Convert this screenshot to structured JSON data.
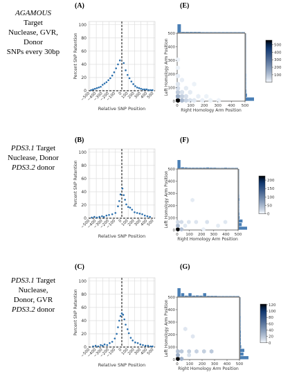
{
  "rows": [
    {
      "letter_left": "(A)",
      "letter_right": "(E)",
      "label_lines": [
        {
          "text": "AGAMOUS",
          "italic": true
        },
        {
          "text": "Target",
          "italic": false
        },
        {
          "text": "Nuclease, GVR,",
          "italic": false
        },
        {
          "text": "Donor",
          "italic": false
        },
        {
          "text": "SNPs every 30bp",
          "italic": false
        }
      ]
    },
    {
      "letter_left": "(B)",
      "letter_right": "(F)",
      "label_lines": [
        {
          "segments": [
            {
              "text": "PDS3.1",
              "italic": true
            },
            {
              "text": " Target",
              "italic": false
            }
          ]
        },
        {
          "text": "Nuclease, Donor",
          "italic": false
        },
        {
          "segments": [
            {
              "text": "PDS3.2",
              "italic": true
            },
            {
              "text": " donor",
              "italic": false
            }
          ]
        }
      ]
    },
    {
      "letter_left": "(C)",
      "letter_right": "(G)",
      "label_lines": [
        {
          "segments": [
            {
              "text": "PDS3.1",
              "italic": true
            },
            {
              "text": " Target",
              "italic": false
            }
          ]
        },
        {
          "text": "Nuclease,",
          "italic": false
        },
        {
          "text": "Donor, GVR",
          "italic": false
        },
        {
          "segments": [
            {
              "text": "PDS3.2",
              "italic": true
            },
            {
              "text": " donor",
              "italic": false
            }
          ]
        }
      ]
    }
  ],
  "colors": {
    "point": "#2a6fad",
    "grid": "#d9d9d9",
    "hist": "#4a7fb5",
    "cmap_low": "#f7fbff",
    "cmap_high": "#08306b",
    "cmap_top": "#000000"
  },
  "chart_data": [
    {
      "type": "scatter",
      "panel": "(A)",
      "xlabel": "Relative SNP Position",
      "ylabel": "Percent SNP Retention",
      "xlim": [
        -520,
        520
      ],
      "ylim": [
        0,
        105
      ],
      "xticks": [
        -500,
        -400,
        -300,
        -200,
        -100,
        0,
        100,
        200,
        300,
        400,
        500
      ],
      "xtick_labels": [
        "−500",
        "−400",
        "−300",
        "−200",
        "−100",
        "0",
        "100",
        "200",
        "300",
        "400",
        "500"
      ],
      "yticks": [
        0,
        20,
        40,
        60,
        80,
        100
      ],
      "grid": true,
      "reference_lines": {
        "vertical_x": 0,
        "horizontal_y": 0
      },
      "x": [
        -480,
        -450,
        -420,
        -390,
        -360,
        -330,
        -300,
        -270,
        -240,
        -210,
        -180,
        -150,
        -120,
        -90,
        -60,
        -30,
        30,
        60,
        90,
        120,
        150,
        180,
        210,
        240,
        270,
        300,
        330,
        360,
        390,
        420,
        450,
        480
      ],
      "y": [
        1,
        2,
        3,
        4,
        5,
        6,
        9,
        11,
        13,
        16,
        19,
        23,
        28,
        34,
        40,
        46,
        42,
        31,
        24,
        19,
        14,
        10,
        7,
        5,
        4,
        3,
        2,
        2,
        2,
        1,
        1,
        1
      ]
    },
    {
      "type": "scatter",
      "panel": "(B)",
      "xlabel": "Relative SNP Position",
      "ylabel": "Percent SNP Retention",
      "xlim": [
        -520,
        520
      ],
      "ylim": [
        0,
        105
      ],
      "xticks": [
        -500,
        -400,
        -300,
        -200,
        -100,
        0,
        100,
        200,
        300,
        400,
        500
      ],
      "xtick_labels": [
        "−500",
        "−400",
        "−300",
        "−200",
        "−100",
        "0",
        "100",
        "200",
        "300",
        "400",
        "500"
      ],
      "yticks": [
        0,
        20,
        40,
        60,
        80,
        100
      ],
      "grid": true,
      "reference_lines": {
        "vertical_x": 0,
        "horizontal_y": 0
      },
      "x": [
        -470,
        -430,
        -390,
        -350,
        -310,
        -280,
        -240,
        -200,
        -150,
        -100,
        -60,
        -40,
        -20,
        10,
        30,
        50,
        70,
        100,
        130,
        160,
        200,
        240,
        280,
        320,
        360,
        400,
        440
      ],
      "y": [
        1,
        2,
        1,
        2,
        3,
        2,
        4,
        5,
        6,
        8,
        18,
        26,
        36,
        45,
        35,
        28,
        21,
        17,
        16,
        13,
        9,
        8,
        7,
        6,
        4,
        3,
        2
      ]
    },
    {
      "type": "scatter",
      "panel": "(C)",
      "xlabel": "Relative SNP Position",
      "ylabel": "Percent SNP Retention",
      "xlim": [
        -520,
        520
      ],
      "ylim": [
        0,
        105
      ],
      "xticks": [
        -500,
        -400,
        -300,
        -200,
        -100,
        0,
        100,
        200,
        300,
        400,
        500
      ],
      "xtick_labels": [
        "−500",
        "−400",
        "−300",
        "−200",
        "−100",
        "0",
        "100",
        "200",
        "300",
        "400",
        "500"
      ],
      "yticks": [
        0,
        20,
        40,
        60,
        80,
        100
      ],
      "grid": true,
      "reference_lines": {
        "vertical_x": 0,
        "horizontal_y": 0
      },
      "x": [
        -450,
        -410,
        -370,
        -330,
        -300,
        -270,
        -230,
        -190,
        -150,
        -110,
        -80,
        -60,
        -40,
        -20,
        0,
        20,
        40,
        60,
        90,
        110,
        140,
        170,
        210,
        250,
        290,
        330,
        370,
        410,
        450,
        480
      ],
      "y": [
        1,
        2,
        1,
        3,
        2,
        4,
        3,
        6,
        8,
        13,
        20,
        30,
        40,
        47,
        51,
        49,
        42,
        34,
        27,
        21,
        14,
        10,
        7,
        6,
        4,
        3,
        2,
        2,
        1,
        1
      ]
    },
    {
      "type": "heatmap",
      "panel": "(E)",
      "xlabel": "Right Homology Arm Position",
      "ylabel": "Left Homology Arm Position",
      "xlim": [
        0,
        500
      ],
      "ylim": [
        0,
        500
      ],
      "xticks": [
        0,
        100,
        200,
        300,
        400,
        500
      ],
      "yticks": [
        0,
        100,
        200,
        300,
        400,
        500
      ],
      "colorbar_ticks": [
        100,
        200,
        300,
        400,
        500
      ],
      "colorbar_max": 560,
      "cells": [
        {
          "x": 0,
          "y": 0,
          "v": 560
        },
        {
          "x": 30,
          "y": 0,
          "v": 120
        },
        {
          "x": 60,
          "y": 0,
          "v": 60
        },
        {
          "x": 0,
          "y": 30,
          "v": 140
        },
        {
          "x": 30,
          "y": 30,
          "v": 70
        },
        {
          "x": 0,
          "y": 60,
          "v": 80
        },
        {
          "x": 60,
          "y": 30,
          "v": 40
        },
        {
          "x": 30,
          "y": 60,
          "v": 35
        },
        {
          "x": 90,
          "y": 0,
          "v": 35
        },
        {
          "x": 0,
          "y": 90,
          "v": 45
        },
        {
          "x": 0,
          "y": 120,
          "v": 30
        },
        {
          "x": 120,
          "y": 0,
          "v": 25
        },
        {
          "x": 90,
          "y": 60,
          "v": 20
        },
        {
          "x": 60,
          "y": 90,
          "v": 20
        },
        {
          "x": 150,
          "y": 30,
          "v": 15
        },
        {
          "x": 30,
          "y": 150,
          "v": 15
        },
        {
          "x": 0,
          "y": 180,
          "v": 18
        },
        {
          "x": 180,
          "y": 0,
          "v": 15
        },
        {
          "x": 210,
          "y": 30,
          "v": 10
        },
        {
          "x": 0,
          "y": 240,
          "v": 10
        },
        {
          "x": 240,
          "y": 0,
          "v": 10
        },
        {
          "x": 120,
          "y": 120,
          "v": 10
        },
        {
          "x": 300,
          "y": 0,
          "v": 8
        },
        {
          "x": 0,
          "y": 300,
          "v": 8
        }
      ],
      "top_hist": {
        "bins": [
          15,
          45,
          75,
          105,
          135,
          165,
          195,
          225,
          255,
          285,
          315,
          345,
          375,
          405,
          435,
          465,
          495
        ],
        "counts": [
          40,
          3,
          3,
          3,
          3,
          3,
          2,
          2,
          2,
          2,
          2,
          2,
          2,
          2,
          2,
          2,
          2
        ],
        "max": 40
      },
      "right_hist": {
        "bins": [
          15,
          45,
          75,
          105,
          135,
          165,
          195,
          225,
          255,
          285,
          315,
          345,
          375,
          405,
          435,
          465,
          495
        ],
        "counts": [
          40,
          6,
          3,
          2,
          2,
          2,
          2,
          1,
          1,
          1,
          1,
          1,
          1,
          1,
          1,
          1,
          1
        ],
        "max": 40
      }
    },
    {
      "type": "heatmap",
      "panel": "(F)",
      "xlabel": "Right Homology Arm Position",
      "ylabel": "Left Homology Arm Position",
      "xlim": [
        0,
        500
      ],
      "ylim": [
        0,
        500
      ],
      "xticks": [
        0,
        100,
        200,
        300,
        400,
        500
      ],
      "yticks": [
        0,
        100,
        200,
        300,
        400,
        500
      ],
      "colorbar_ticks": [
        0,
        50,
        100,
        150,
        200
      ],
      "colorbar_max": 225,
      "cells": [
        {
          "x": 0,
          "y": 0,
          "v": 225
        },
        {
          "x": 30,
          "y": 0,
          "v": 40
        },
        {
          "x": 0,
          "y": 30,
          "v": 45
        },
        {
          "x": 0,
          "y": 60,
          "v": 20
        },
        {
          "x": 30,
          "y": 60,
          "v": 18
        },
        {
          "x": 90,
          "y": 60,
          "v": 12
        },
        {
          "x": 150,
          "y": 60,
          "v": 12
        },
        {
          "x": 240,
          "y": 60,
          "v": 14
        },
        {
          "x": 390,
          "y": 60,
          "v": 10
        },
        {
          "x": 60,
          "y": 30,
          "v": 10
        },
        {
          "x": 120,
          "y": 240,
          "v": 8
        },
        {
          "x": 330,
          "y": 30,
          "v": 8
        },
        {
          "x": 210,
          "y": 0,
          "v": 6
        }
      ],
      "top_hist": {
        "bins": [
          15,
          45,
          75,
          105,
          135,
          165,
          195,
          225,
          255,
          285,
          315,
          345,
          375,
          405,
          435,
          465,
          495
        ],
        "counts": [
          40,
          5,
          4,
          3,
          3,
          3,
          3,
          3,
          4,
          3,
          3,
          2,
          2,
          3,
          2,
          2,
          2
        ],
        "max": 40
      },
      "right_hist": {
        "bins": [
          15,
          45,
          75,
          105,
          135,
          165,
          195,
          225,
          255,
          285,
          315,
          345,
          375,
          405,
          435,
          465,
          495
        ],
        "counts": [
          40,
          14,
          18,
          4,
          3,
          2,
          2,
          2,
          3,
          2,
          1,
          1,
          1,
          1,
          1,
          1,
          1
        ],
        "max": 40
      }
    },
    {
      "type": "heatmap",
      "panel": "(G)",
      "xlabel": "Right Homology Arm Position",
      "ylabel": "Left Homology Arm Position",
      "xlim": [
        0,
        500
      ],
      "ylim": [
        0,
        500
      ],
      "xticks": [
        0,
        100,
        200,
        300,
        400,
        500
      ],
      "yticks": [
        0,
        100,
        200,
        300,
        400,
        500
      ],
      "colorbar_ticks": [
        0,
        20,
        40,
        60,
        80,
        100,
        120
      ],
      "colorbar_max": 122,
      "cells": [
        {
          "x": 0,
          "y": 0,
          "v": 122
        },
        {
          "x": 30,
          "y": 0,
          "v": 30
        },
        {
          "x": 0,
          "y": 30,
          "v": 30
        },
        {
          "x": 0,
          "y": 60,
          "v": 22
        },
        {
          "x": 30,
          "y": 60,
          "v": 18
        },
        {
          "x": 90,
          "y": 60,
          "v": 15
        },
        {
          "x": 150,
          "y": 60,
          "v": 14
        },
        {
          "x": 210,
          "y": 60,
          "v": 15
        },
        {
          "x": 270,
          "y": 60,
          "v": 18
        },
        {
          "x": 90,
          "y": 30,
          "v": 8
        },
        {
          "x": 120,
          "y": 180,
          "v": 6
        },
        {
          "x": 60,
          "y": 240,
          "v": 6
        }
      ],
      "top_hist": {
        "bins": [
          15,
          45,
          75,
          105,
          135,
          165,
          195,
          225,
          255,
          285,
          315,
          345,
          375,
          405,
          435,
          465,
          495
        ],
        "counts": [
          40,
          16,
          4,
          16,
          4,
          5,
          4,
          16,
          3,
          3,
          3,
          2,
          2,
          2,
          2,
          2,
          2
        ],
        "max": 40
      },
      "right_hist": {
        "bins": [
          15,
          45,
          75,
          105,
          135,
          165,
          195,
          225,
          255,
          285,
          315,
          345,
          375,
          405,
          435,
          465,
          495
        ],
        "counts": [
          40,
          16,
          20,
          5,
          3,
          3,
          3,
          3,
          2,
          2,
          2,
          2,
          1,
          1,
          1,
          1,
          1
        ],
        "max": 40
      }
    }
  ]
}
